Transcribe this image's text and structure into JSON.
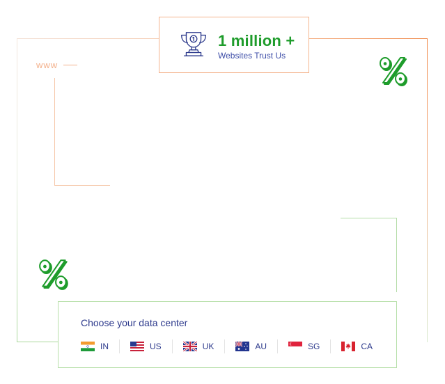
{
  "decor": {
    "www_label": "www"
  },
  "badge": {
    "icon": "trophy-icon",
    "title": "1 million +",
    "subtitle": "Websites Trust Us"
  },
  "datacenter": {
    "title": "Choose your data center",
    "options": [
      {
        "code": "IN",
        "flag": "india-flag-icon"
      },
      {
        "code": "US",
        "flag": "usa-flag-icon"
      },
      {
        "code": "UK",
        "flag": "uk-flag-icon"
      },
      {
        "code": "AU",
        "flag": "australia-flag-icon"
      },
      {
        "code": "SG",
        "flag": "singapore-flag-icon"
      },
      {
        "code": "CA",
        "flag": "canada-flag-icon"
      }
    ]
  },
  "colors": {
    "brand_green": "#1e9c2b",
    "accent_orange": "#f08a4b",
    "text_blue": "#2d3a8c"
  }
}
